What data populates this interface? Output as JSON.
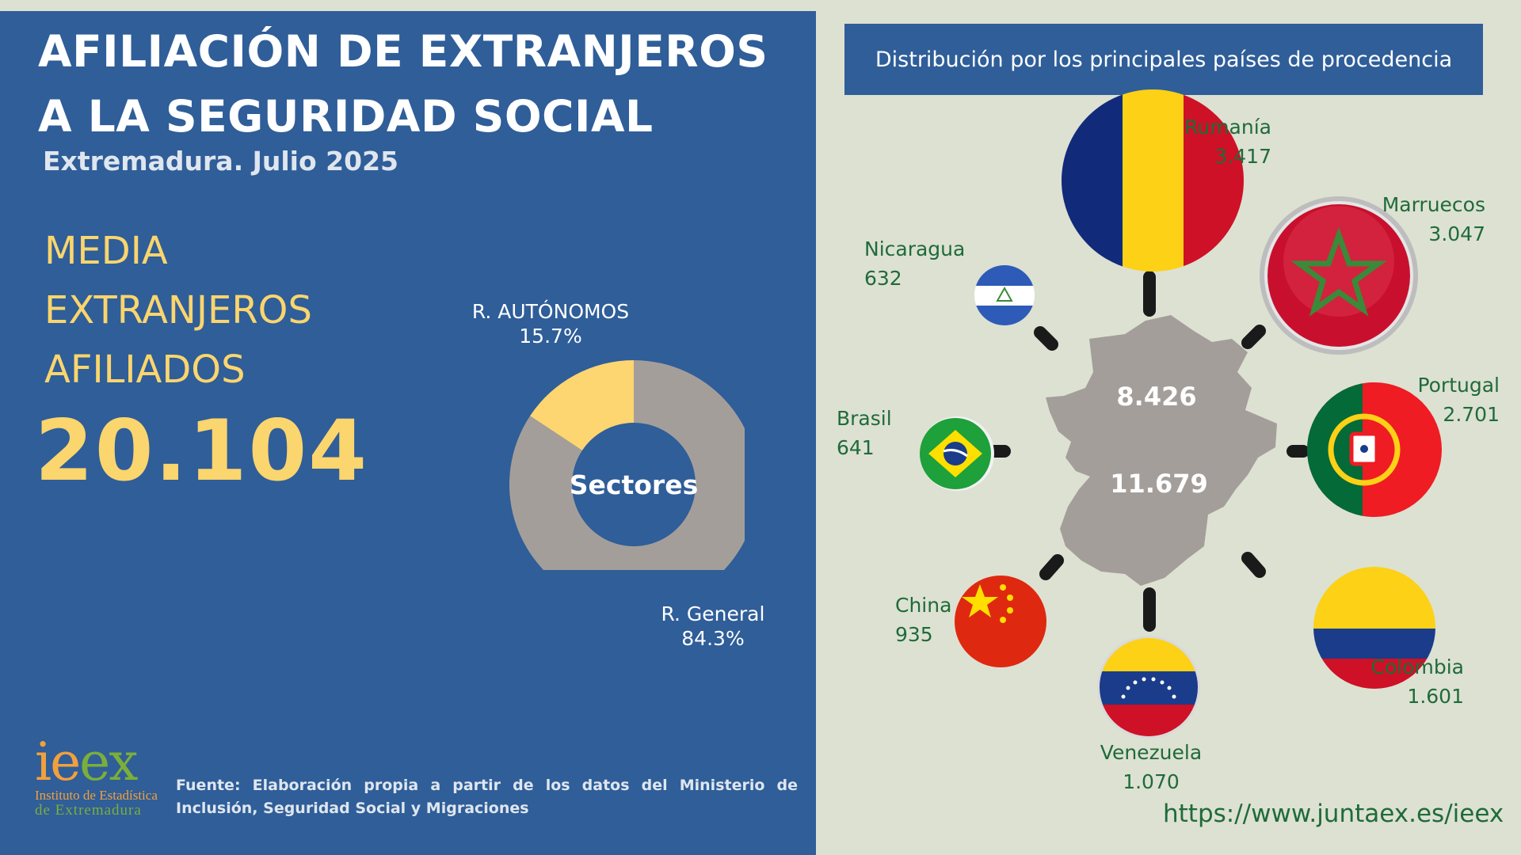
{
  "title_line1": "AFILIACIÓN DE EXTRANJEROS",
  "title_line2": "A LA SEGURIDAD SOCIAL",
  "subtitle": "Extremadura. Julio 2025",
  "media_label": [
    "MEDIA",
    "EXTRANJEROS",
    "AFILIADOS"
  ],
  "media_value": "20.104",
  "chart_data": [
    {
      "type": "pie",
      "title": "Sectores",
      "center_label": "Sectores",
      "categories": [
        "R. AUTÓNOMOS",
        "R. General"
      ],
      "values": [
        15.7,
        84.3
      ],
      "value_labels": [
        "15.7%",
        "84.3%"
      ],
      "colors": [
        "#fdd571",
        "#a49e9a"
      ]
    },
    {
      "type": "table",
      "title": "Distribución por los principales países de procedencia",
      "categories": [
        "Rumanía",
        "Marruecos",
        "Portugal",
        "Colombia",
        "Venezuela",
        "China",
        "Brasil",
        "Nicaragua"
      ],
      "values": [
        3417,
        3047,
        2701,
        1601,
        1070,
        935,
        641,
        632
      ],
      "value_labels": [
        "3.417",
        "3.047",
        "2.701",
        "1.601",
        "1.070",
        "935",
        "641",
        "632"
      ],
      "map_values": [
        "8.426",
        "11.679"
      ]
    }
  ],
  "flags": {
    "rumania": "romania-flag-icon",
    "marruecos": "morocco-flag-icon",
    "portugal": "portugal-flag-icon",
    "colombia": "colombia-flag-icon",
    "venezuela": "venezuela-flag-icon",
    "china": "china-flag-icon",
    "brasil": "brazil-flag-icon",
    "nicaragua": "nicaragua-flag-icon"
  },
  "colors": {
    "panel_blue": "#2f5e99",
    "background": "#dde1d2",
    "accent_yellow": "#fbd56d",
    "green_text": "#1f6b3a",
    "map_gray": "#a49e9a"
  },
  "logo": {
    "letters_ie": "ie",
    "letters_ex": "ex",
    "line1": "Instituto de Estadística",
    "line2": "de Extremadura"
  },
  "source": "Fuente: Elaboración propia a partir de los datos del Ministerio de Inclusión, Seguridad Social y Migraciones",
  "url": "https://www.juntaex.es/ieex"
}
